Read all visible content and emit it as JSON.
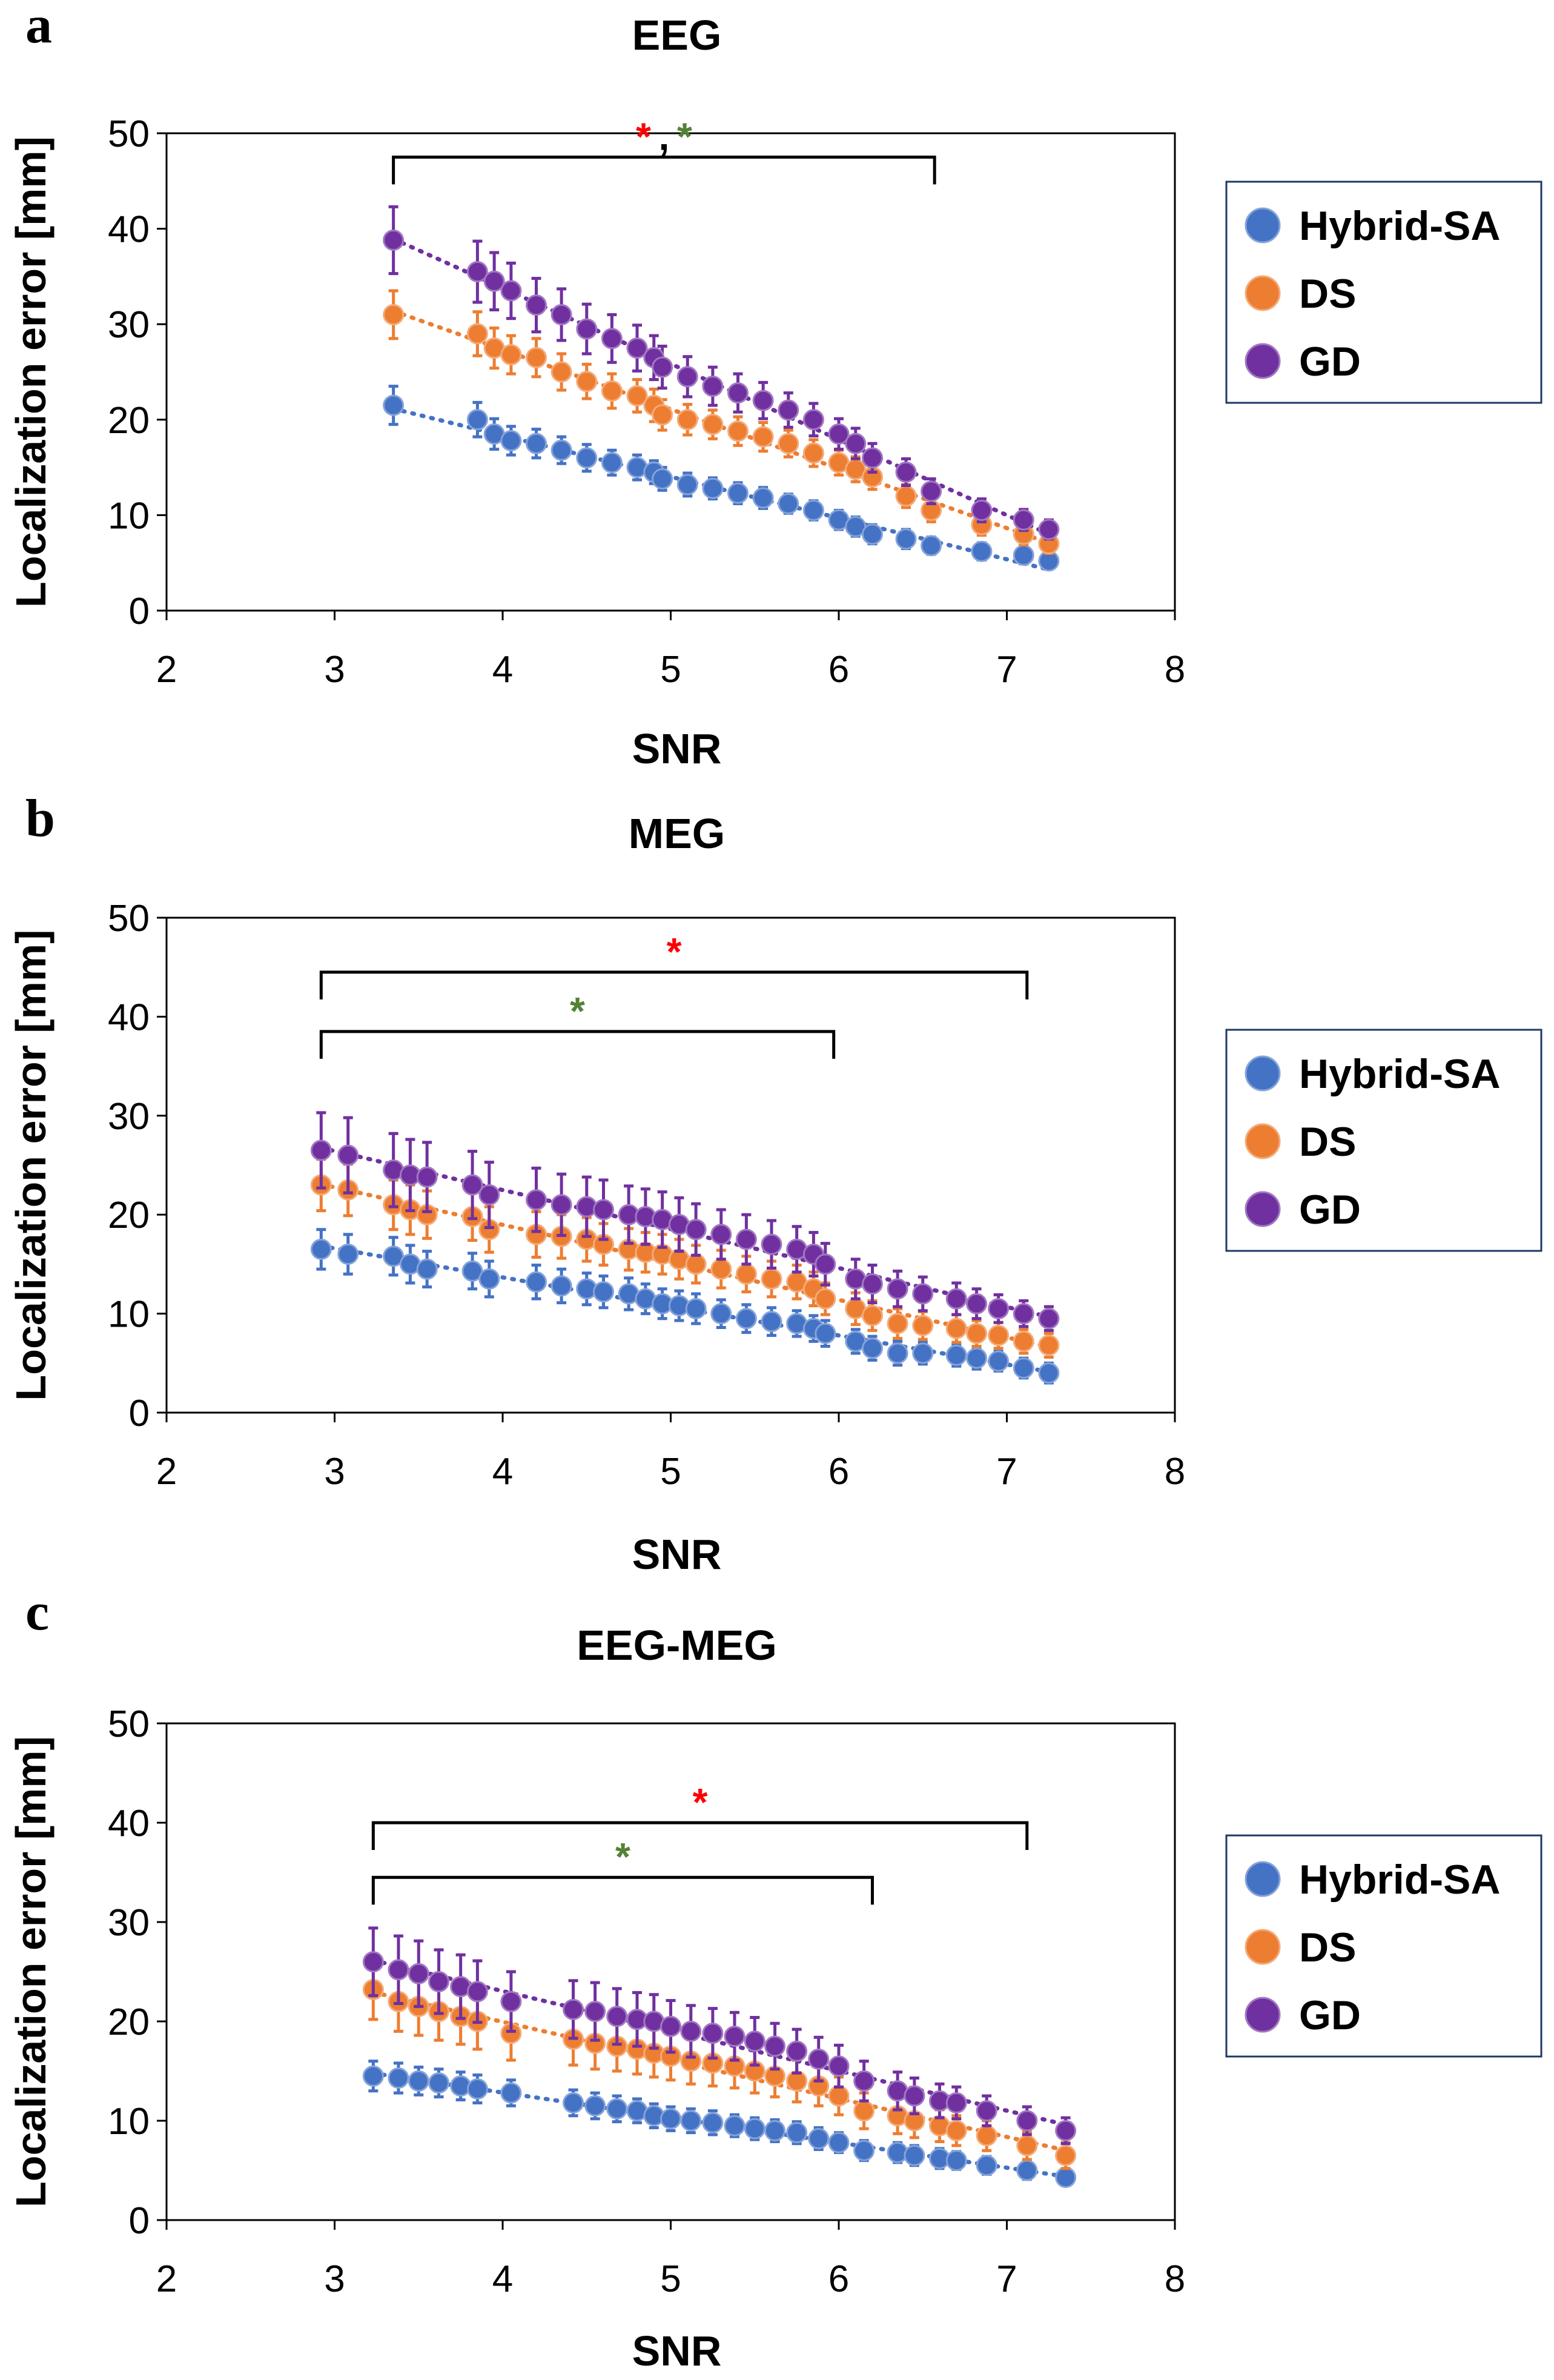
{
  "figure": {
    "panels": [
      "a",
      "b",
      "c"
    ]
  },
  "colors": {
    "Hybrid-SA": "#4472C4",
    "DS": "#ED7D31",
    "GD": "#7030A0",
    "star_red": "#FF0000",
    "star_green": "#548235"
  },
  "chart_data": [
    {
      "panel": "a",
      "type": "scatter",
      "title": "EEG",
      "xlabel": "SNR",
      "ylabel": "Localization error [mm]",
      "xlim": [
        2,
        8
      ],
      "ylim": [
        0,
        50
      ],
      "xticks": [
        2,
        3,
        4,
        5,
        6,
        7,
        8
      ],
      "yticks": [
        0,
        10,
        20,
        30,
        40,
        50
      ],
      "legend": [
        "Hybrid-SA",
        "DS",
        "GD"
      ],
      "legend_position": "right",
      "series": [
        {
          "name": "Hybrid-SA",
          "x": [
            3.35,
            3.85,
            3.95,
            4.05,
            4.2,
            4.35,
            4.5,
            4.65,
            4.8,
            4.9,
            4.95,
            5.1,
            5.25,
            5.4,
            5.55,
            5.7,
            5.85,
            6.0,
            6.1,
            6.2,
            6.4,
            6.55,
            6.85,
            7.1,
            7.25
          ],
          "y": [
            21.5,
            20.0,
            18.5,
            17.8,
            17.5,
            16.8,
            16.0,
            15.5,
            15.0,
            14.5,
            13.8,
            13.2,
            12.8,
            12.3,
            11.8,
            11.2,
            10.5,
            9.5,
            8.8,
            8.0,
            7.5,
            6.8,
            6.2,
            5.8,
            5.2
          ],
          "err": [
            2.0,
            1.8,
            1.6,
            1.5,
            1.5,
            1.4,
            1.4,
            1.3,
            1.3,
            1.2,
            1.2,
            1.2,
            1.1,
            1.1,
            1.1,
            1.0,
            1.0,
            1.0,
            1.0,
            1.0,
            1.0,
            0.9,
            0.9,
            0.9,
            0.8
          ]
        },
        {
          "name": "DS",
          "x": [
            3.35,
            3.85,
            3.95,
            4.05,
            4.2,
            4.35,
            4.5,
            4.65,
            4.8,
            4.9,
            4.95,
            5.1,
            5.25,
            5.4,
            5.55,
            5.7,
            5.85,
            6.0,
            6.1,
            6.2,
            6.4,
            6.55,
            6.85,
            7.1,
            7.25
          ],
          "y": [
            31.0,
            29.0,
            27.5,
            26.8,
            26.5,
            25.0,
            24.0,
            23.0,
            22.5,
            21.5,
            20.5,
            20.0,
            19.5,
            18.8,
            18.2,
            17.5,
            16.5,
            15.5,
            14.8,
            14.0,
            12.0,
            10.5,
            9.0,
            8.0,
            7.0
          ],
          "err": [
            2.5,
            2.3,
            2.1,
            2.0,
            2.0,
            1.9,
            1.8,
            1.8,
            1.7,
            1.7,
            1.6,
            1.6,
            1.5,
            1.5,
            1.5,
            1.4,
            1.4,
            1.3,
            1.3,
            1.3,
            1.2,
            1.2,
            1.1,
            1.1,
            1.0
          ]
        },
        {
          "name": "GD",
          "x": [
            3.35,
            3.85,
            3.95,
            4.05,
            4.2,
            4.35,
            4.5,
            4.65,
            4.8,
            4.9,
            4.95,
            5.1,
            5.25,
            5.4,
            5.55,
            5.7,
            5.85,
            6.0,
            6.1,
            6.2,
            6.4,
            6.55,
            6.85,
            7.1,
            7.25
          ],
          "y": [
            38.8,
            35.5,
            34.5,
            33.5,
            32.0,
            31.0,
            29.5,
            28.5,
            27.5,
            26.5,
            25.5,
            24.5,
            23.5,
            22.8,
            22.0,
            21.0,
            20.0,
            18.5,
            17.5,
            16.0,
            14.5,
            12.5,
            10.5,
            9.5,
            8.5
          ],
          "err": [
            3.5,
            3.2,
            3.0,
            2.9,
            2.8,
            2.7,
            2.6,
            2.5,
            2.4,
            2.3,
            2.2,
            2.1,
            2.0,
            2.0,
            1.9,
            1.8,
            1.7,
            1.6,
            1.6,
            1.5,
            1.4,
            1.3,
            1.2,
            1.1,
            1.0
          ]
        }
      ],
      "significance": [
        {
          "x_start": 3.35,
          "x_end": 6.57,
          "y": 47.5,
          "marks": [
            "*",
            ",",
            "*"
          ],
          "mark_colors": [
            "red",
            "black",
            "green"
          ]
        }
      ]
    },
    {
      "panel": "b",
      "type": "scatter",
      "title": "MEG",
      "xlabel": "SNR",
      "ylabel": "Localization error [mm]",
      "xlim": [
        2,
        8
      ],
      "ylim": [
        0,
        50
      ],
      "xticks": [
        2,
        3,
        4,
        5,
        6,
        7,
        8
      ],
      "yticks": [
        0,
        10,
        20,
        30,
        40,
        50
      ],
      "legend": [
        "Hybrid-SA",
        "DS",
        "GD"
      ],
      "legend_position": "right",
      "series": [
        {
          "name": "Hybrid-SA",
          "x": [
            2.92,
            3.08,
            3.35,
            3.45,
            3.55,
            3.82,
            3.92,
            4.2,
            4.35,
            4.5,
            4.6,
            4.75,
            4.85,
            4.95,
            5.05,
            5.15,
            5.3,
            5.45,
            5.6,
            5.75,
            5.85,
            5.92,
            6.1,
            6.2,
            6.35,
            6.5,
            6.7,
            6.82,
            6.95,
            7.1,
            7.25
          ],
          "y": [
            16.5,
            16.0,
            15.8,
            15.0,
            14.5,
            14.3,
            13.5,
            13.2,
            12.8,
            12.5,
            12.2,
            12.0,
            11.5,
            11.0,
            10.8,
            10.5,
            10.0,
            9.5,
            9.2,
            9.0,
            8.5,
            8.0,
            7.2,
            6.5,
            6.0,
            6.0,
            5.8,
            5.5,
            5.2,
            4.5,
            4.0
          ],
          "err": [
            2.0,
            2.0,
            1.9,
            1.9,
            1.8,
            1.8,
            1.8,
            1.7,
            1.7,
            1.6,
            1.6,
            1.6,
            1.5,
            1.5,
            1.5,
            1.5,
            1.4,
            1.4,
            1.4,
            1.3,
            1.3,
            1.3,
            1.2,
            1.2,
            1.2,
            1.1,
            1.1,
            1.1,
            1.0,
            1.0,
            1.0
          ]
        },
        {
          "name": "DS",
          "x": [
            2.92,
            3.08,
            3.35,
            3.45,
            3.55,
            3.82,
            3.92,
            4.2,
            4.35,
            4.5,
            4.6,
            4.75,
            4.85,
            4.95,
            5.05,
            5.15,
            5.3,
            5.45,
            5.6,
            5.75,
            5.85,
            5.92,
            6.1,
            6.2,
            6.35,
            6.5,
            6.7,
            6.82,
            6.95,
            7.1,
            7.25
          ],
          "y": [
            23.0,
            22.5,
            21.0,
            20.5,
            20.0,
            19.8,
            18.5,
            18.0,
            17.8,
            17.5,
            17.0,
            16.5,
            16.2,
            16.0,
            15.5,
            15.0,
            14.5,
            14.0,
            13.5,
            13.2,
            12.5,
            11.5,
            10.5,
            9.8,
            9.0,
            8.8,
            8.5,
            8.0,
            7.8,
            7.2,
            6.8
          ],
          "err": [
            2.6,
            2.6,
            2.5,
            2.5,
            2.4,
            2.4,
            2.3,
            2.3,
            2.2,
            2.2,
            2.1,
            2.1,
            2.0,
            2.0,
            2.0,
            1.9,
            1.9,
            1.8,
            1.8,
            1.7,
            1.7,
            1.6,
            1.6,
            1.5,
            1.5,
            1.4,
            1.4,
            1.3,
            1.3,
            1.2,
            1.2
          ]
        },
        {
          "name": "GD",
          "x": [
            2.92,
            3.08,
            3.35,
            3.45,
            3.55,
            3.82,
            3.92,
            4.2,
            4.35,
            4.5,
            4.6,
            4.75,
            4.85,
            4.95,
            5.05,
            5.15,
            5.3,
            5.45,
            5.6,
            5.75,
            5.85,
            5.92,
            6.1,
            6.2,
            6.35,
            6.5,
            6.7,
            6.82,
            6.95,
            7.1,
            7.25
          ],
          "y": [
            26.5,
            26.0,
            24.5,
            24.0,
            23.8,
            23.0,
            22.0,
            21.5,
            21.0,
            20.8,
            20.5,
            20.0,
            19.8,
            19.5,
            19.0,
            18.5,
            18.0,
            17.5,
            17.0,
            16.5,
            16.0,
            15.0,
            13.5,
            13.0,
            12.5,
            12.0,
            11.5,
            11.0,
            10.5,
            10.0,
            9.5
          ],
          "err": [
            3.8,
            3.8,
            3.7,
            3.6,
            3.5,
            3.4,
            3.3,
            3.2,
            3.1,
            3.0,
            3.0,
            2.9,
            2.8,
            2.8,
            2.7,
            2.6,
            2.5,
            2.5,
            2.4,
            2.3,
            2.2,
            2.1,
            2.0,
            1.9,
            1.8,
            1.7,
            1.6,
            1.5,
            1.4,
            1.3,
            1.2
          ]
        }
      ],
      "significance": [
        {
          "x_start": 2.92,
          "x_end": 7.12,
          "y": 44.5,
          "marks": [
            "*"
          ],
          "mark_colors": [
            "red"
          ]
        },
        {
          "x_start": 2.92,
          "x_end": 5.97,
          "y": 38.5,
          "marks": [
            "*"
          ],
          "mark_colors": [
            "green"
          ]
        }
      ]
    },
    {
      "panel": "c",
      "type": "scatter",
      "title": "EEG-MEG",
      "xlabel": "SNR",
      "ylabel": "Localization error [mm]",
      "xlim": [
        2,
        8
      ],
      "ylim": [
        0,
        50
      ],
      "xticks": [
        2,
        3,
        4,
        5,
        6,
        7,
        8
      ],
      "yticks": [
        0,
        10,
        20,
        30,
        40,
        50
      ],
      "legend": [
        "Hybrid-SA",
        "DS",
        "GD"
      ],
      "legend_position": "right",
      "series": [
        {
          "name": "Hybrid-SA",
          "x": [
            3.23,
            3.38,
            3.5,
            3.62,
            3.75,
            3.85,
            4.05,
            4.42,
            4.55,
            4.68,
            4.8,
            4.9,
            5.0,
            5.12,
            5.25,
            5.38,
            5.5,
            5.62,
            5.75,
            5.88,
            6.0,
            6.15,
            6.35,
            6.45,
            6.6,
            6.7,
            6.88,
            7.12,
            7.35
          ],
          "y": [
            14.5,
            14.3,
            14.0,
            13.8,
            13.5,
            13.2,
            12.8,
            11.8,
            11.5,
            11.2,
            11.0,
            10.5,
            10.2,
            10.0,
            9.8,
            9.5,
            9.2,
            9.0,
            8.8,
            8.2,
            7.8,
            7.0,
            6.8,
            6.5,
            6.2,
            6.0,
            5.5,
            5.0,
            4.3
          ],
          "err": [
            1.5,
            1.5,
            1.4,
            1.4,
            1.4,
            1.4,
            1.3,
            1.3,
            1.3,
            1.3,
            1.2,
            1.2,
            1.2,
            1.2,
            1.2,
            1.1,
            1.1,
            1.1,
            1.1,
            1.1,
            1.0,
            1.0,
            1.0,
            1.0,
            1.0,
            0.9,
            0.9,
            0.9,
            0.8
          ]
        },
        {
          "name": "DS",
          "x": [
            3.23,
            3.38,
            3.5,
            3.62,
            3.75,
            3.85,
            4.05,
            4.42,
            4.55,
            4.68,
            4.8,
            4.9,
            5.0,
            5.12,
            5.25,
            5.38,
            5.5,
            5.62,
            5.75,
            5.88,
            6.0,
            6.15,
            6.35,
            6.45,
            6.6,
            6.7,
            6.88,
            7.12,
            7.35
          ],
          "y": [
            23.2,
            22.0,
            21.5,
            21.0,
            20.5,
            20.0,
            18.8,
            18.2,
            17.8,
            17.5,
            17.2,
            16.8,
            16.5,
            16.0,
            15.8,
            15.5,
            15.0,
            14.5,
            14.0,
            13.5,
            12.5,
            11.0,
            10.5,
            10.0,
            9.5,
            9.0,
            8.5,
            7.5,
            6.5
          ],
          "err": [
            3.0,
            3.0,
            2.9,
            2.9,
            2.8,
            2.8,
            2.7,
            2.6,
            2.6,
            2.5,
            2.5,
            2.4,
            2.4,
            2.3,
            2.3,
            2.2,
            2.2,
            2.1,
            2.1,
            2.0,
            1.9,
            1.8,
            1.8,
            1.7,
            1.6,
            1.5,
            1.5,
            1.4,
            1.3
          ]
        },
        {
          "name": "GD",
          "x": [
            3.23,
            3.38,
            3.5,
            3.62,
            3.75,
            3.85,
            4.05,
            4.42,
            4.55,
            4.68,
            4.8,
            4.9,
            5.0,
            5.12,
            5.25,
            5.38,
            5.5,
            5.62,
            5.75,
            5.88,
            6.0,
            6.15,
            6.35,
            6.45,
            6.6,
            6.7,
            6.88,
            7.12,
            7.35
          ],
          "y": [
            26.0,
            25.2,
            24.8,
            24.0,
            23.5,
            23.0,
            22.0,
            21.2,
            21.0,
            20.5,
            20.2,
            20.0,
            19.5,
            19.0,
            18.8,
            18.5,
            18.0,
            17.5,
            17.0,
            16.2,
            15.5,
            14.0,
            13.0,
            12.5,
            12.0,
            11.8,
            11.0,
            10.0,
            9.0
          ],
          "err": [
            3.4,
            3.4,
            3.3,
            3.2,
            3.2,
            3.1,
            3.0,
            2.9,
            2.9,
            2.8,
            2.7,
            2.7,
            2.6,
            2.6,
            2.5,
            2.4,
            2.4,
            2.3,
            2.2,
            2.2,
            2.1,
            2.0,
            1.9,
            1.8,
            1.7,
            1.6,
            1.5,
            1.4,
            1.3
          ]
        }
      ],
      "significance": [
        {
          "x_start": 3.23,
          "x_end": 7.12,
          "y": 40.0,
          "marks": [
            "*"
          ],
          "mark_colors": [
            "red"
          ]
        },
        {
          "x_start": 3.23,
          "x_end": 6.2,
          "y": 34.5,
          "marks": [
            "*"
          ],
          "mark_colors": [
            "green"
          ]
        }
      ]
    }
  ]
}
